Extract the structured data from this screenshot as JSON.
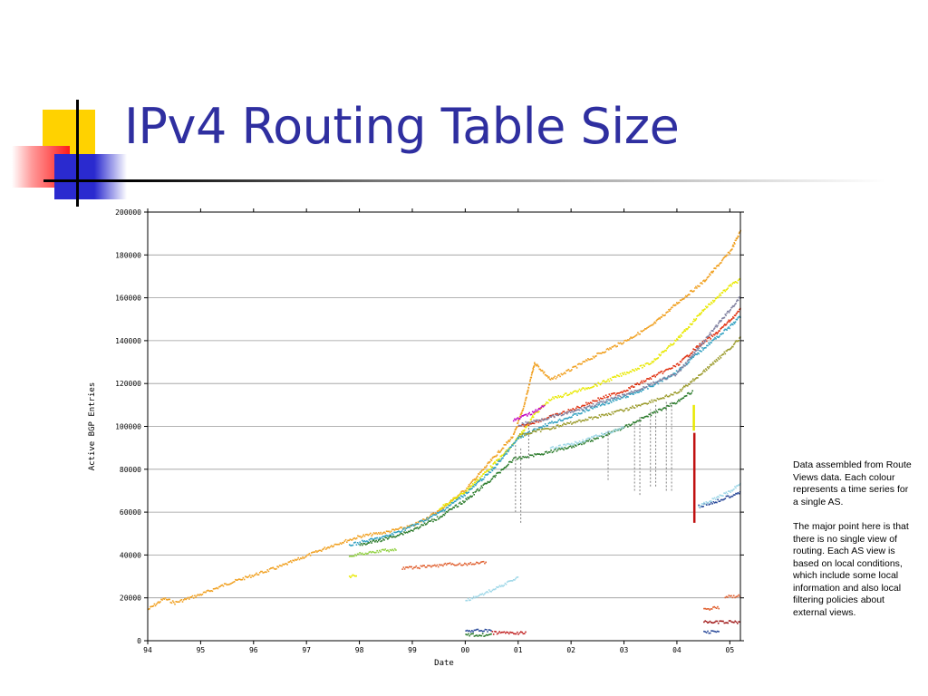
{
  "slide": {
    "title": "IPv4 Routing Table Size",
    "note": [
      "Data assembled from Route Views data. Each colour represents a time series for a single AS.",
      "The major point here is that there is no single view of routing. Each AS view is based on local conditions, which include some local information and also local filtering policies about external views."
    ]
  },
  "colors": {
    "title": "#2f2fa0",
    "deco_yellow": "#ffd200",
    "deco_red": "#ff1a1a",
    "deco_blue": "#2a2acf"
  },
  "chart_data": {
    "type": "scatter",
    "xlabel": "Date",
    "ylabel": "Active BGP Entries",
    "xlim": [
      1994.0,
      2005.2
    ],
    "ylim": [
      0,
      200000
    ],
    "x_ticks": [
      "94",
      "95",
      "96",
      "97",
      "98",
      "99",
      "00",
      "01",
      "02",
      "03",
      "04",
      "05"
    ],
    "y_ticks": [
      "0",
      "20000",
      "40000",
      "60000",
      "80000",
      "100000",
      "120000",
      "140000",
      "160000",
      "180000",
      "200000"
    ],
    "grid": "horizontal",
    "series": [
      {
        "color": "#f0a020",
        "x": [
          1994.0,
          1994.3,
          1994.5,
          1995.0,
          1995.5,
          1996.0,
          1996.5,
          1997.0,
          1997.5,
          1998.0,
          1998.5,
          1999.0,
          1999.5,
          2000.0,
          2000.5,
          2000.9,
          2001.1,
          2001.3,
          2001.6,
          2002.0,
          2002.5,
          2003.0,
          2003.5,
          2004.0,
          2004.5,
          2005.0,
          2005.2
        ],
        "y": [
          15000,
          20000,
          18000,
          22000,
          27000,
          31000,
          35000,
          40000,
          45000,
          49000,
          51000,
          54000,
          61000,
          71000,
          85000,
          96000,
          110000,
          130000,
          122000,
          127000,
          134000,
          140000,
          147000,
          158000,
          168000,
          182000,
          192000
        ]
      },
      {
        "color": "#e8e800",
        "x": [
          1999.5,
          2000.0,
          2000.5,
          2000.9,
          2001.3,
          2001.6,
          2002.0,
          2002.5,
          2003.0,
          2003.5,
          2004.0,
          2004.5,
          2005.0,
          2005.2
        ],
        "y": [
          62000,
          70000,
          82000,
          92000,
          106000,
          113000,
          116000,
          120000,
          125000,
          130000,
          141000,
          155000,
          166000,
          169000
        ]
      },
      {
        "color": "#e03010",
        "x": [
          2001.0,
          2001.5,
          2002.0,
          2002.5,
          2003.0,
          2003.5,
          2004.0,
          2004.4,
          2004.7,
          2005.0,
          2005.2
        ],
        "y": [
          100000,
          104000,
          108000,
          113000,
          117000,
          123000,
          129000,
          138000,
          143000,
          150000,
          155000
        ]
      },
      {
        "color": "#30a0c0",
        "x": [
          1997.8,
          1998.5,
          1999.0,
          1999.5,
          2000.0,
          2000.5,
          2001.0,
          2001.5,
          2002.0,
          2002.5,
          2003.0,
          2003.5,
          2004.0,
          2004.5,
          2005.0,
          2005.2
        ],
        "y": [
          45000,
          49000,
          54000,
          60000,
          69000,
          80000,
          95000,
          101000,
          105000,
          110000,
          114000,
          119000,
          126000,
          137000,
          147000,
          152000
        ]
      },
      {
        "color": "#8080a0",
        "x": [
          2001.0,
          2002.0,
          2003.0,
          2004.0,
          2004.5,
          2005.0,
          2005.2
        ],
        "y": [
          101000,
          107000,
          115000,
          125000,
          140000,
          155000,
          161000
        ]
      },
      {
        "color": "#2a7a2a",
        "x": [
          1998.0,
          1998.5,
          1999.0,
          1999.5,
          2000.0,
          2000.5,
          2000.9,
          2001.5,
          2002.0,
          2002.5,
          2003.0,
          2003.5,
          2004.0,
          2004.3
        ],
        "y": [
          45000,
          48000,
          52000,
          58000,
          66000,
          76000,
          85000,
          88000,
          91000,
          95000,
          100000,
          106000,
          112000,
          117000
        ]
      },
      {
        "color": "#9a9a2a",
        "x": [
          2001.0,
          2002.0,
          2003.0,
          2004.0,
          2004.5,
          2005.0,
          2005.2
        ],
        "y": [
          96000,
          102000,
          108000,
          116000,
          126000,
          137000,
          142000
        ]
      },
      {
        "color": "#a0d8e8",
        "x": [
          2001.6,
          2002.0,
          2002.5,
          2003.0
        ],
        "y": [
          90000,
          92000,
          96000,
          100000
        ]
      },
      {
        "color": "#c000c0",
        "x": [
          2000.9,
          2001.2,
          2001.5
        ],
        "y": [
          103000,
          106000,
          110000
        ]
      },
      {
        "color": "#90d040",
        "x": [
          1997.8,
          1998.3,
          1998.7
        ],
        "y": [
          40000,
          42000,
          43000
        ]
      },
      {
        "color": "#e8e800",
        "x": [
          1997.8,
          1997.95
        ],
        "y": [
          30000,
          31000
        ]
      },
      {
        "color": "#e06030",
        "x": [
          1998.8,
          1999.3,
          1999.7,
          2000.0,
          2000.4
        ],
        "y": [
          34000,
          35000,
          36000,
          36000,
          37000
        ]
      },
      {
        "color": "#a0d8e8",
        "x": [
          2000.0,
          2000.5,
          2001.0
        ],
        "y": [
          19000,
          24000,
          30000
        ]
      },
      {
        "color": "#2a4a9a",
        "x": [
          2004.4,
          2004.7,
          2005.0,
          2005.2
        ],
        "y": [
          63000,
          65000,
          68000,
          70000
        ]
      },
      {
        "color": "#a0d8e8",
        "x": [
          2004.4,
          2005.0,
          2005.2
        ],
        "y": [
          63000,
          70000,
          74000
        ]
      },
      {
        "color": "#e06030",
        "x": [
          2004.5,
          2004.8
        ],
        "y": [
          15000,
          16000
        ]
      },
      {
        "color": "#e06030",
        "x": [
          2004.9,
          2005.2
        ],
        "y": [
          21000,
          21000
        ]
      },
      {
        "color": "#a01818",
        "x": [
          2004.5,
          2005.2
        ],
        "y": [
          9000,
          9000
        ]
      },
      {
        "color": "#2a4a9a",
        "x": [
          2004.5,
          2004.8
        ],
        "y": [
          4500,
          4500
        ]
      },
      {
        "color": "#2a4a9a",
        "x": [
          2000.0,
          2000.5
        ],
        "y": [
          5000,
          5000
        ]
      },
      {
        "color": "#2a7a2a",
        "x": [
          2000.0,
          2000.5
        ],
        "y": [
          3000,
          3000
        ]
      },
      {
        "color": "#c02020",
        "x": [
          2000.5,
          2001.15
        ],
        "y": [
          4000,
          4000
        ]
      }
    ],
    "spikes": [
      {
        "color": "#c01010",
        "x": 2004.33,
        "y": [
          55000,
          97000
        ]
      },
      {
        "color": "#e8e800",
        "x": 2004.32,
        "y": [
          98000,
          110000
        ]
      },
      {
        "color": "#808080",
        "x": 2000.95,
        "y": [
          60000,
          92000
        ]
      },
      {
        "color": "#808080",
        "x": 2001.05,
        "y": [
          55000,
          90000
        ]
      },
      {
        "color": "#808080",
        "x": 2003.2,
        "y": [
          70000,
          102000
        ]
      },
      {
        "color": "#808080",
        "x": 2003.3,
        "y": [
          68000,
          105000
        ]
      },
      {
        "color": "#808080",
        "x": 2003.5,
        "y": [
          72000,
          108000
        ]
      },
      {
        "color": "#808080",
        "x": 2003.6,
        "y": [
          72000,
          110000
        ]
      },
      {
        "color": "#808080",
        "x": 2003.8,
        "y": [
          70000,
          112000
        ]
      },
      {
        "color": "#808080",
        "x": 2003.9,
        "y": [
          70000,
          112000
        ]
      },
      {
        "color": "#808080",
        "x": 2002.7,
        "y": [
          75000,
          98000
        ]
      },
      {
        "color": "#808080",
        "x": 2001.2,
        "y": [
          85000,
          100000
        ]
      }
    ]
  }
}
